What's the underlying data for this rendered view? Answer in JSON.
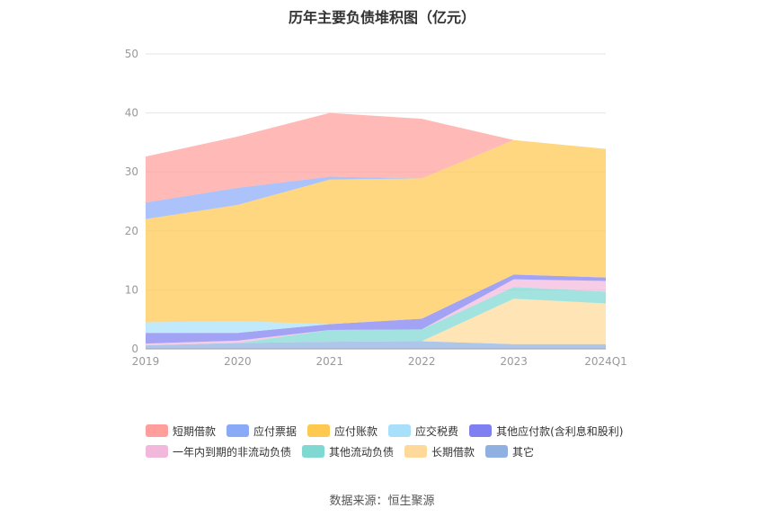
{
  "chart_data": {
    "type": "area",
    "stacked": true,
    "title": "历年主要负债堆积图（亿元）",
    "categories": [
      "2019",
      "2020",
      "2021",
      "2022",
      "2023",
      "2024Q1"
    ],
    "ylim": [
      0,
      50
    ],
    "yticks": [
      0,
      10,
      20,
      30,
      40,
      50
    ],
    "grid": true,
    "legend_position": "bottom",
    "series": [
      {
        "name": "其它",
        "color": "#8fb0e0",
        "values": [
          0.6,
          1.0,
          1.2,
          1.3,
          0.8,
          0.8
        ]
      },
      {
        "name": "长期借款",
        "color": "#ffd99a",
        "values": [
          0.0,
          0.0,
          0.0,
          0.0,
          7.7,
          6.9
        ]
      },
      {
        "name": "其他流动负债",
        "color": "#7fd8d2",
        "values": [
          0.0,
          0.0,
          2.0,
          2.0,
          2.0,
          2.0
        ]
      },
      {
        "name": "一年内到期的非流动负债",
        "color": "#f2b8dc",
        "values": [
          0.3,
          0.4,
          0.0,
          0.0,
          1.3,
          1.8
        ]
      },
      {
        "name": "其他应付款(含利息和股利)",
        "color": "#7f7ff2",
        "values": [
          1.8,
          1.3,
          1.0,
          1.8,
          0.8,
          0.6
        ]
      },
      {
        "name": "应交税费",
        "color": "#a8e0fb",
        "values": [
          1.8,
          2.0,
          0.0,
          0.0,
          0.0,
          0.0
        ]
      },
      {
        "name": "应付账款",
        "color": "#ffc850",
        "values": [
          17.5,
          19.7,
          24.5,
          23.8,
          22.8,
          21.8
        ]
      },
      {
        "name": "应付票据",
        "color": "#8aaaf8",
        "values": [
          2.8,
          2.9,
          0.5,
          0.0,
          0.0,
          0.0
        ]
      },
      {
        "name": "短期借款",
        "color": "#ff9e9a",
        "values": [
          7.8,
          8.7,
          10.8,
          10.1,
          0.0,
          0.0
        ]
      }
    ]
  },
  "legend_order": [
    "短期借款",
    "应付票据",
    "应付账款",
    "应交税费",
    "其他应付款(含利息和股利)",
    "一年内到期的非流动负债",
    "其他流动负债",
    "长期借款",
    "其它"
  ],
  "source": "数据来源：恒生聚源"
}
